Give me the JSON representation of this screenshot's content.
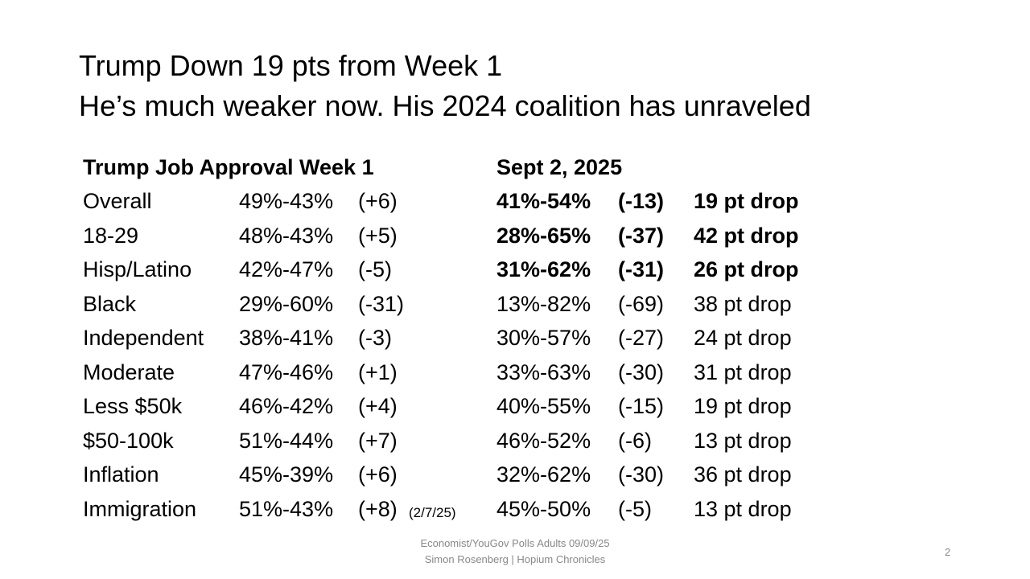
{
  "title": {
    "line1": "Trump Down 19 pts from Week 1",
    "line2": "He’s much weaker now.  His 2024 coalition has unraveled"
  },
  "table": {
    "header": {
      "week1": "Trump Job Approval Week 1",
      "sept": "Sept 2, 2025"
    },
    "rows": [
      {
        "label": "Overall",
        "week1": "49%-43%",
        "week1_net": "(+6)",
        "sept": "41%-54%",
        "sept_net": "(-13)",
        "drop": "19 pt drop",
        "bold": true
      },
      {
        "label": "18-29",
        "week1": "48%-43%",
        "week1_net": "(+5)",
        "sept": "28%-65%",
        "sept_net": "(-37)",
        "drop": "42 pt drop",
        "bold": true
      },
      {
        "label": "Hisp/Latino",
        "week1": "42%-47%",
        "week1_net": "(-5)",
        "sept": "31%-62%",
        "sept_net": "(-31)",
        "drop": "26 pt drop",
        "bold": true
      },
      {
        "label": "Black",
        "week1": "29%-60%",
        "week1_net": "(-31)",
        "sept": "13%-82%",
        "sept_net": "(-69)",
        "drop": "38 pt drop",
        "bold": false
      },
      {
        "label": "Independent",
        "week1": "38%-41%",
        "week1_net": "(-3)",
        "sept": "30%-57%",
        "sept_net": "(-27)",
        "drop": "24 pt drop",
        "bold": false
      },
      {
        "label": "Moderate",
        "week1": "47%-46%",
        "week1_net": "(+1)",
        "sept": "33%-63%",
        "sept_net": "(-30)",
        "drop": "31 pt drop",
        "bold": false
      },
      {
        "label": "Less $50k",
        "week1": "46%-42%",
        "week1_net": "(+4)",
        "sept": "40%-55%",
        "sept_net": "(-15)",
        "drop": "19 pt drop",
        "bold": false
      },
      {
        "label": "$50-100k",
        "week1": "51%-44%",
        "week1_net": "(+7)",
        "sept": "46%-52%",
        "sept_net": "(-6)",
        "drop": "13 pt drop",
        "bold": false
      },
      {
        "label": "Inflation",
        "week1": "45%-39%",
        "week1_net": "(+6)",
        "sept": "32%-62%",
        "sept_net": "(-30)",
        "drop": "36 pt drop",
        "bold": false
      },
      {
        "label": "Immigration",
        "week1": "51%-43%",
        "week1_net": "(+8)",
        "note": "(2/7/25)",
        "sept": "45%-50%",
        "sept_net": "(-5)",
        "drop": "13 pt drop",
        "bold": false
      }
    ]
  },
  "footer": {
    "source": "Economist/YouGov Polls Adults 09/09/25",
    "author": "Simon Rosenberg | Hopium Chronicles",
    "page": "2"
  }
}
